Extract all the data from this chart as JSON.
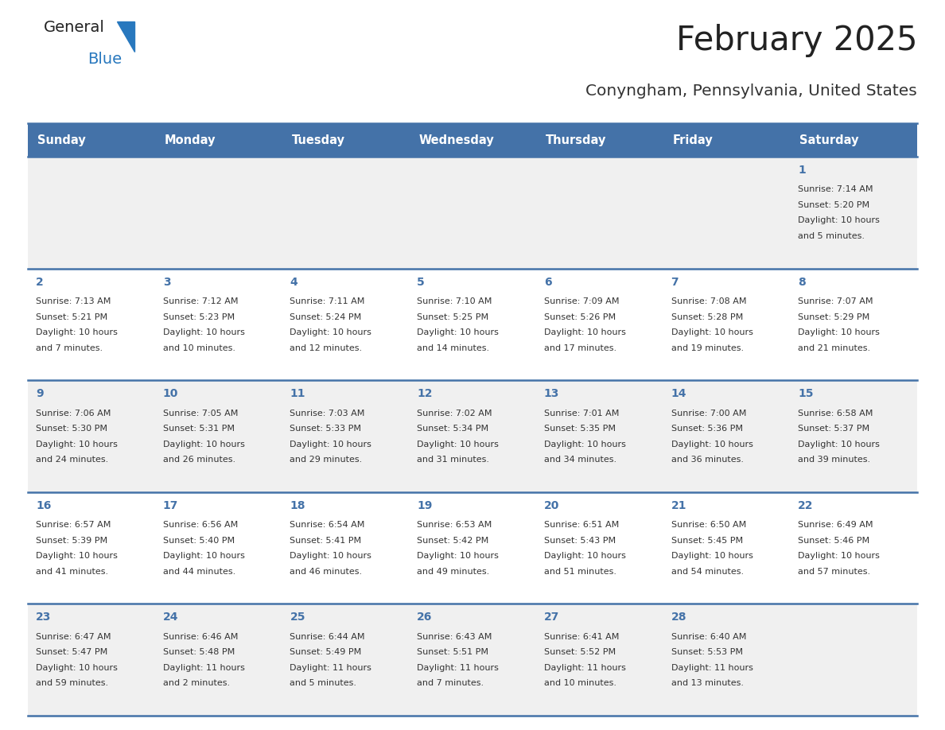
{
  "title": "February 2025",
  "subtitle": "Conyngham, Pennsylvania, United States",
  "header_color": "#4472a8",
  "header_text_color": "#ffffff",
  "day_names": [
    "Sunday",
    "Monday",
    "Tuesday",
    "Wednesday",
    "Thursday",
    "Friday",
    "Saturday"
  ],
  "row_bg_colors": [
    "#f0f0f0",
    "#ffffff"
  ],
  "border_color": "#4472a8",
  "title_color": "#222222",
  "subtitle_color": "#333333",
  "day_number_color": "#4472a8",
  "cell_text_color": "#333333",
  "logo_general_color": "#222222",
  "logo_blue_color": "#2878be",
  "logo_triangle_color": "#2878be",
  "calendar_data": [
    {
      "day": 1,
      "col": 6,
      "row": 0,
      "sunrise": "7:14 AM",
      "sunset": "5:20 PM",
      "daylight_hours": 10,
      "daylight_minutes": 5
    },
    {
      "day": 2,
      "col": 0,
      "row": 1,
      "sunrise": "7:13 AM",
      "sunset": "5:21 PM",
      "daylight_hours": 10,
      "daylight_minutes": 7
    },
    {
      "day": 3,
      "col": 1,
      "row": 1,
      "sunrise": "7:12 AM",
      "sunset": "5:23 PM",
      "daylight_hours": 10,
      "daylight_minutes": 10
    },
    {
      "day": 4,
      "col": 2,
      "row": 1,
      "sunrise": "7:11 AM",
      "sunset": "5:24 PM",
      "daylight_hours": 10,
      "daylight_minutes": 12
    },
    {
      "day": 5,
      "col": 3,
      "row": 1,
      "sunrise": "7:10 AM",
      "sunset": "5:25 PM",
      "daylight_hours": 10,
      "daylight_minutes": 14
    },
    {
      "day": 6,
      "col": 4,
      "row": 1,
      "sunrise": "7:09 AM",
      "sunset": "5:26 PM",
      "daylight_hours": 10,
      "daylight_minutes": 17
    },
    {
      "day": 7,
      "col": 5,
      "row": 1,
      "sunrise": "7:08 AM",
      "sunset": "5:28 PM",
      "daylight_hours": 10,
      "daylight_minutes": 19
    },
    {
      "day": 8,
      "col": 6,
      "row": 1,
      "sunrise": "7:07 AM",
      "sunset": "5:29 PM",
      "daylight_hours": 10,
      "daylight_minutes": 21
    },
    {
      "day": 9,
      "col": 0,
      "row": 2,
      "sunrise": "7:06 AM",
      "sunset": "5:30 PM",
      "daylight_hours": 10,
      "daylight_minutes": 24
    },
    {
      "day": 10,
      "col": 1,
      "row": 2,
      "sunrise": "7:05 AM",
      "sunset": "5:31 PM",
      "daylight_hours": 10,
      "daylight_minutes": 26
    },
    {
      "day": 11,
      "col": 2,
      "row": 2,
      "sunrise": "7:03 AM",
      "sunset": "5:33 PM",
      "daylight_hours": 10,
      "daylight_minutes": 29
    },
    {
      "day": 12,
      "col": 3,
      "row": 2,
      "sunrise": "7:02 AM",
      "sunset": "5:34 PM",
      "daylight_hours": 10,
      "daylight_minutes": 31
    },
    {
      "day": 13,
      "col": 4,
      "row": 2,
      "sunrise": "7:01 AM",
      "sunset": "5:35 PM",
      "daylight_hours": 10,
      "daylight_minutes": 34
    },
    {
      "day": 14,
      "col": 5,
      "row": 2,
      "sunrise": "7:00 AM",
      "sunset": "5:36 PM",
      "daylight_hours": 10,
      "daylight_minutes": 36
    },
    {
      "day": 15,
      "col": 6,
      "row": 2,
      "sunrise": "6:58 AM",
      "sunset": "5:37 PM",
      "daylight_hours": 10,
      "daylight_minutes": 39
    },
    {
      "day": 16,
      "col": 0,
      "row": 3,
      "sunrise": "6:57 AM",
      "sunset": "5:39 PM",
      "daylight_hours": 10,
      "daylight_minutes": 41
    },
    {
      "day": 17,
      "col": 1,
      "row": 3,
      "sunrise": "6:56 AM",
      "sunset": "5:40 PM",
      "daylight_hours": 10,
      "daylight_minutes": 44
    },
    {
      "day": 18,
      "col": 2,
      "row": 3,
      "sunrise": "6:54 AM",
      "sunset": "5:41 PM",
      "daylight_hours": 10,
      "daylight_minutes": 46
    },
    {
      "day": 19,
      "col": 3,
      "row": 3,
      "sunrise": "6:53 AM",
      "sunset": "5:42 PM",
      "daylight_hours": 10,
      "daylight_minutes": 49
    },
    {
      "day": 20,
      "col": 4,
      "row": 3,
      "sunrise": "6:51 AM",
      "sunset": "5:43 PM",
      "daylight_hours": 10,
      "daylight_minutes": 51
    },
    {
      "day": 21,
      "col": 5,
      "row": 3,
      "sunrise": "6:50 AM",
      "sunset": "5:45 PM",
      "daylight_hours": 10,
      "daylight_minutes": 54
    },
    {
      "day": 22,
      "col": 6,
      "row": 3,
      "sunrise": "6:49 AM",
      "sunset": "5:46 PM",
      "daylight_hours": 10,
      "daylight_minutes": 57
    },
    {
      "day": 23,
      "col": 0,
      "row": 4,
      "sunrise": "6:47 AM",
      "sunset": "5:47 PM",
      "daylight_hours": 10,
      "daylight_minutes": 59
    },
    {
      "day": 24,
      "col": 1,
      "row": 4,
      "sunrise": "6:46 AM",
      "sunset": "5:48 PM",
      "daylight_hours": 11,
      "daylight_minutes": 2
    },
    {
      "day": 25,
      "col": 2,
      "row": 4,
      "sunrise": "6:44 AM",
      "sunset": "5:49 PM",
      "daylight_hours": 11,
      "daylight_minutes": 5
    },
    {
      "day": 26,
      "col": 3,
      "row": 4,
      "sunrise": "6:43 AM",
      "sunset": "5:51 PM",
      "daylight_hours": 11,
      "daylight_minutes": 7
    },
    {
      "day": 27,
      "col": 4,
      "row": 4,
      "sunrise": "6:41 AM",
      "sunset": "5:52 PM",
      "daylight_hours": 11,
      "daylight_minutes": 10
    },
    {
      "day": 28,
      "col": 5,
      "row": 4,
      "sunrise": "6:40 AM",
      "sunset": "5:53 PM",
      "daylight_hours": 11,
      "daylight_minutes": 13
    }
  ],
  "figwidth": 11.88,
  "figheight": 9.18,
  "dpi": 100
}
